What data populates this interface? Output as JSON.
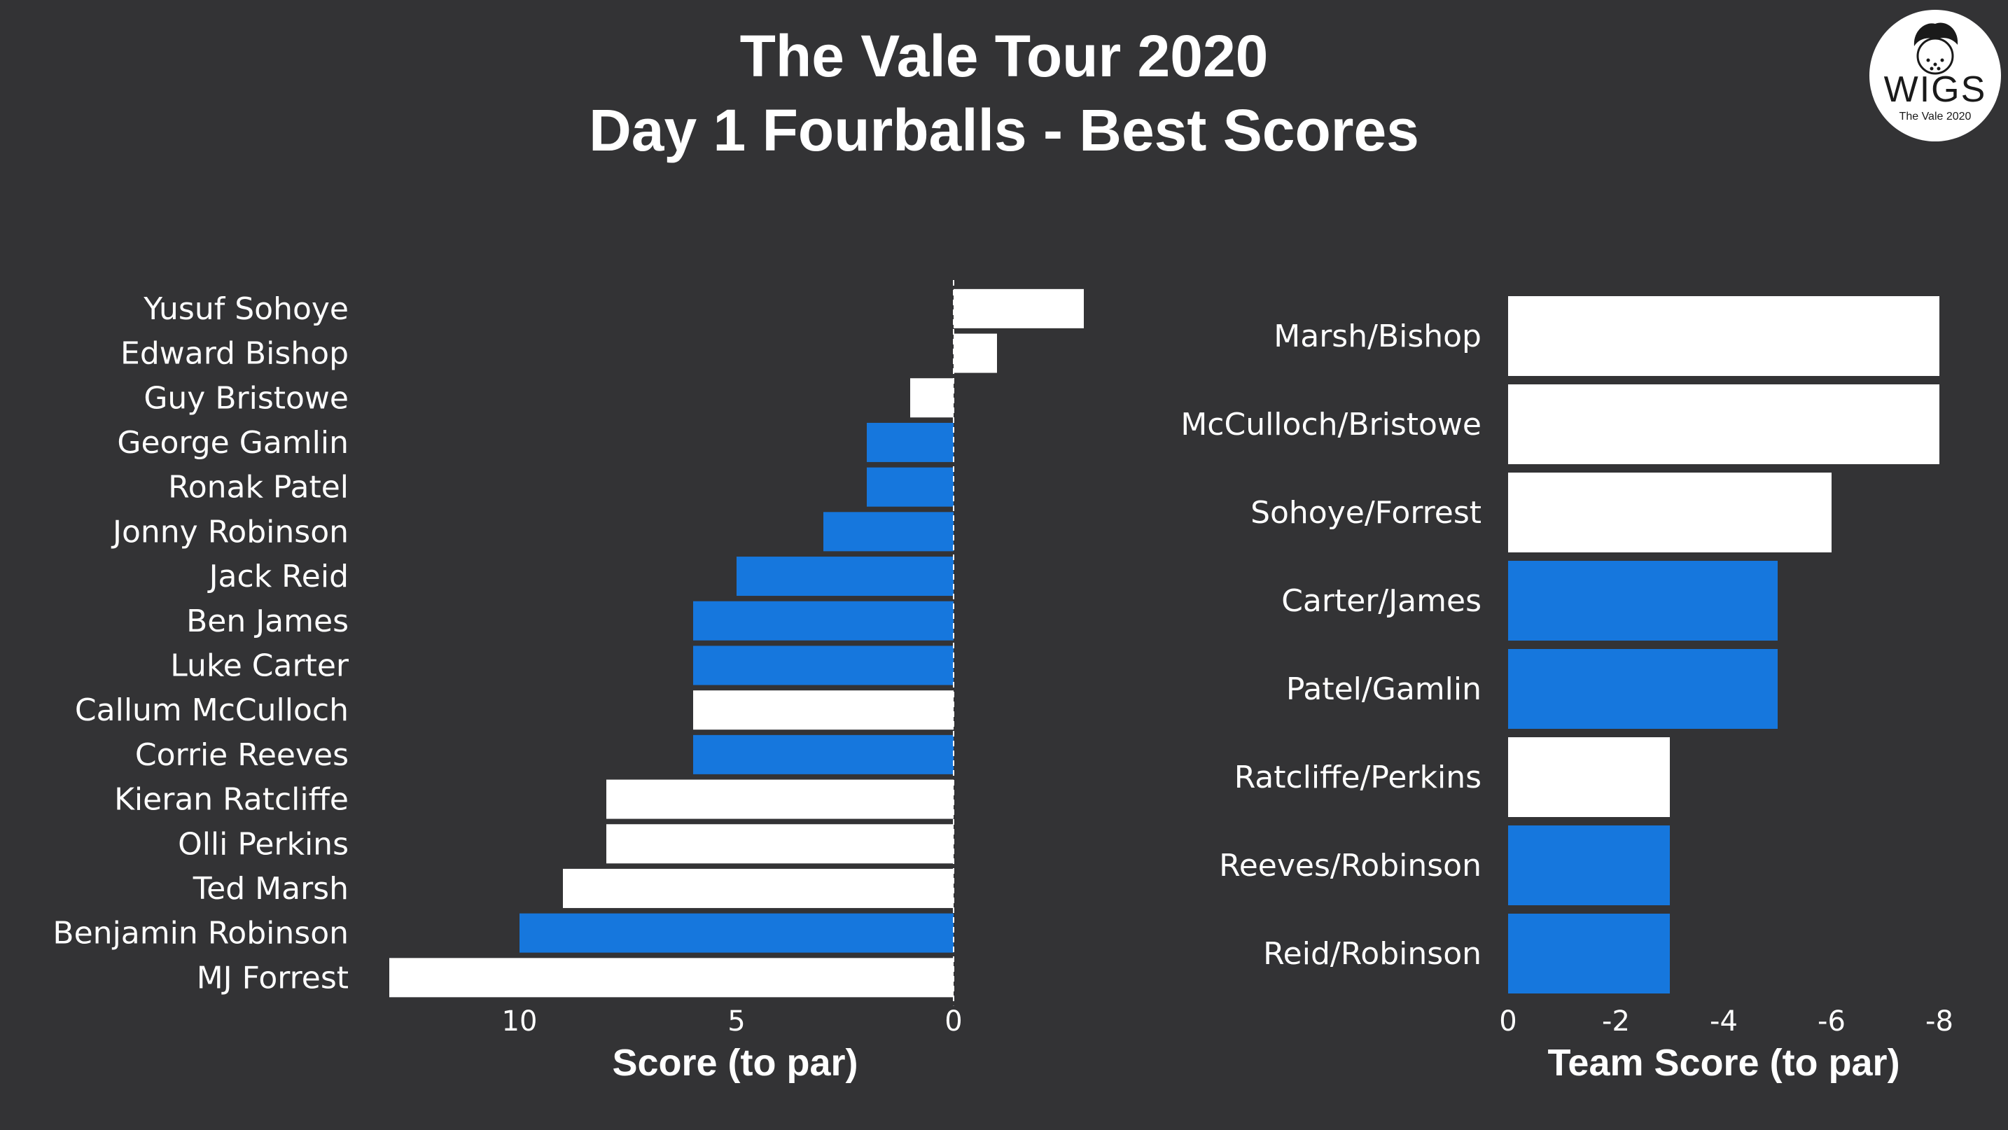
{
  "title": {
    "line1": "The Vale Tour 2020",
    "line2": "Day 1 Fourballs - Best Scores"
  },
  "logo": {
    "word": "WIGS",
    "subtitle": "The Vale 2020",
    "icon": "golfer-head-icon"
  },
  "colors": {
    "background": "#333335",
    "blue": "#1677dd",
    "white": "#ffffff"
  },
  "chart_data": [
    {
      "type": "bar",
      "orientation": "horizontal",
      "xlabel": "Score (to par)",
      "ylabel": "",
      "xlim": [
        13,
        -3
      ],
      "x_reversed": true,
      "xticks": [
        10,
        5,
        0
      ],
      "zero_line": "dashed",
      "categories": [
        "Yusuf Sohoye",
        "Edward Bishop",
        "Guy Bristowe",
        "George Gamlin",
        "Ronak Patel",
        "Jonny Robinson",
        "Jack Reid",
        "Ben James",
        "Luke Carter",
        "Callum McCulloch",
        "Corrie Reeves",
        "Kieran Ratcliffe",
        "Olli Perkins",
        "Ted Marsh",
        "Benjamin Robinson",
        "MJ Forrest"
      ],
      "values": [
        -3,
        -1,
        1,
        2,
        2,
        3,
        5,
        6,
        6,
        6,
        6,
        8,
        8,
        9,
        10,
        13
      ],
      "colors": [
        "white",
        "white",
        "white",
        "blue",
        "blue",
        "blue",
        "blue",
        "blue",
        "blue",
        "white",
        "blue",
        "white",
        "white",
        "white",
        "blue",
        "white"
      ]
    },
    {
      "type": "bar",
      "orientation": "horizontal",
      "xlabel": "Team Score (to par)",
      "ylabel": "",
      "xlim": [
        0,
        -8
      ],
      "xticks": [
        0,
        -2,
        -4,
        -6,
        -8
      ],
      "categories": [
        "Marsh/Bishop",
        "McCulloch/Bristowe",
        "Sohoye/Forrest",
        "Carter/James",
        "Patel/Gamlin",
        "Ratcliffe/Perkins",
        "Reeves/Robinson",
        "Reid/Robinson"
      ],
      "values": [
        -8,
        -8,
        -6,
        -5,
        -5,
        -3,
        -3,
        -3
      ],
      "colors": [
        "white",
        "white",
        "white",
        "blue",
        "blue",
        "white",
        "blue",
        "blue"
      ]
    }
  ]
}
